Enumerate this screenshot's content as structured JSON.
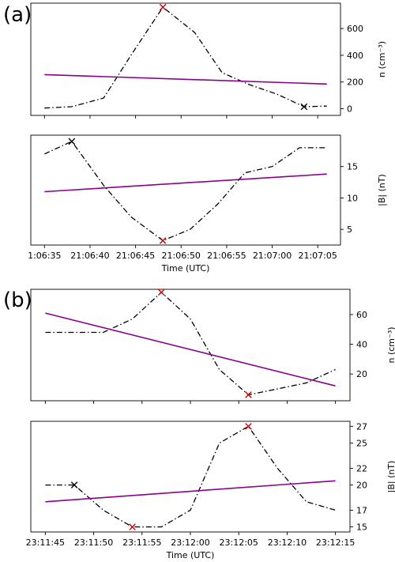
{
  "figure": {
    "colors": {
      "data_line": "#000000",
      "fit_line": "#8b008b",
      "extrema_marker": "#d00000",
      "black_marker": "#000000"
    }
  },
  "chart_data": [
    {
      "panel": "(a)",
      "type": "line",
      "x_tick_labels": [
        "1:06:35",
        "21:06:40",
        "21:06:45",
        "21:06:50",
        "21:06:55",
        "21:07:00",
        "21:07:05"
      ],
      "x_tick_seconds": [
        0,
        5,
        10,
        15,
        20,
        25,
        30
      ],
      "x_range_seconds": [
        -1.5,
        32.5
      ],
      "xlabel": "Time (UTC)",
      "subplots": [
        {
          "ylabel": "n (cm⁻³)",
          "ylim": [
            -50,
            790
          ],
          "yticks": [
            0,
            200,
            400,
            600
          ],
          "series": [
            {
              "style": "dashdot",
              "x": [
                0,
                3,
                6.5,
                9.5,
                13,
                16.5,
                19.5,
                22.5,
                25.5,
                28.5,
                31
              ],
              "y": [
                5,
                15,
                80,
                400,
                760,
                570,
                270,
                180,
                110,
                15,
                20
              ]
            },
            {
              "style": "fit",
              "x": [
                0,
                31
              ],
              "y": [
                255,
                185
              ]
            }
          ],
          "markers": [
            {
              "x": 13,
              "y": 760,
              "color": "red"
            },
            {
              "x": 28.5,
              "y": 15,
              "color": "black"
            }
          ]
        },
        {
          "ylabel": "|B| (nT)",
          "ylim": [
            2.5,
            20
          ],
          "yticks": [
            5,
            10,
            15
          ],
          "series": [
            {
              "style": "dashdot",
              "x": [
                0,
                3,
                6.5,
                9.5,
                13,
                16,
                19,
                22,
                25,
                28,
                31
              ],
              "y": [
                17,
                19,
                12,
                7,
                3.2,
                5,
                9,
                14,
                15,
                18,
                18
              ]
            },
            {
              "style": "fit",
              "x": [
                0,
                31
              ],
              "y": [
                11,
                13.8
              ]
            }
          ],
          "markers": [
            {
              "x": 3,
              "y": 19,
              "color": "black"
            },
            {
              "x": 13,
              "y": 3.2,
              "color": "red"
            }
          ]
        }
      ]
    },
    {
      "panel": "(b)",
      "type": "line",
      "x_tick_labels": [
        "23:11:45",
        "23:11:50",
        "23:11:55",
        "23:12:00",
        "23:12:05",
        "23:12:10",
        "23:12:15"
      ],
      "x_tick_seconds": [
        0,
        5,
        10,
        15,
        20,
        25,
        30
      ],
      "x_range_seconds": [
        -1.5,
        31.5
      ],
      "xlabel": "Time (UTC)",
      "subplots": [
        {
          "ylabel": "n (cm⁻³)",
          "ylim": [
            2,
            77
          ],
          "yticks": [
            20,
            40,
            60
          ],
          "series": [
            {
              "style": "dashdot",
              "x": [
                0,
                3,
                6,
                9,
                12,
                15,
                18,
                21,
                24,
                27,
                30
              ],
              "y": [
                48,
                48,
                48,
                57,
                75,
                57,
                23,
                6,
                10,
                14,
                23
              ]
            },
            {
              "style": "fit",
              "x": [
                0,
                30
              ],
              "y": [
                61,
                12
              ]
            }
          ],
          "markers": [
            {
              "x": 12,
              "y": 75,
              "color": "red"
            },
            {
              "x": 21,
              "y": 6,
              "color": "red"
            }
          ]
        },
        {
          "ylabel": "|B| (nT)",
          "ylim": [
            14.4,
            27.6
          ],
          "yticks": [
            15,
            17,
            20,
            22,
            25,
            27
          ],
          "series": [
            {
              "style": "dashdot",
              "x": [
                0,
                3,
                6,
                9,
                12,
                15,
                18,
                21,
                24,
                27,
                30
              ],
              "y": [
                20,
                20,
                17,
                15,
                15,
                17,
                25,
                27,
                22,
                18,
                17
              ]
            },
            {
              "style": "fit",
              "x": [
                0,
                30
              ],
              "y": [
                18,
                20.5
              ]
            }
          ],
          "markers": [
            {
              "x": 3,
              "y": 20,
              "color": "black"
            },
            {
              "x": 9,
              "y": 15,
              "color": "red"
            },
            {
              "x": 21,
              "y": 27,
              "color": "red"
            }
          ]
        }
      ]
    }
  ]
}
